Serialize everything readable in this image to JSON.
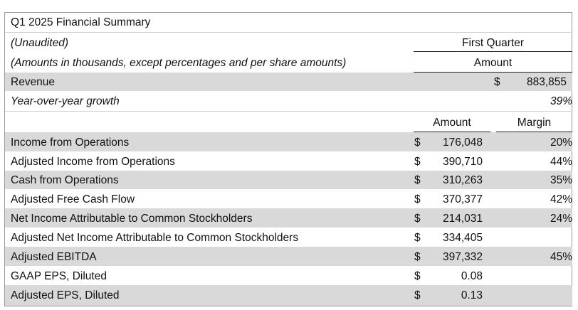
{
  "title": "Q1 2025 Financial Summary",
  "subtitle_unaudited": "(Unaudited)",
  "subtitle_units": "(Amounts in thousands, except percentages and per share amounts)",
  "header": {
    "period": "First Quarter",
    "amount": "Amount",
    "col_amount": "Amount",
    "col_margin": "Margin"
  },
  "revenue": {
    "label": "Revenue",
    "currency": "$",
    "value": "883,855"
  },
  "growth": {
    "label": "Year-over-year growth",
    "value": "39%"
  },
  "rows": [
    {
      "label": "Income from Operations",
      "currency": "$",
      "amount": "176,048",
      "margin": "20%"
    },
    {
      "label": "Adjusted Income from Operations",
      "currency": "$",
      "amount": "390,710",
      "margin": "44%"
    },
    {
      "label": "Cash from Operations",
      "currency": "$",
      "amount": "310,263",
      "margin": "35%"
    },
    {
      "label": "Adjusted Free Cash Flow",
      "currency": "$",
      "amount": "370,377",
      "margin": "42%"
    },
    {
      "label": "Net Income Attributable to Common Stockholders",
      "currency": "$",
      "amount": "214,031",
      "margin": "24%"
    },
    {
      "label": "Adjusted Net Income Attributable to Common Stockholders",
      "currency": "$",
      "amount": "334,405",
      "margin": ""
    },
    {
      "label": "Adjusted EBITDA",
      "currency": "$",
      "amount": "397,332",
      "margin": "45%"
    },
    {
      "label": "GAAP EPS, Diluted",
      "currency": "$",
      "amount": "0.08",
      "margin": ""
    },
    {
      "label": "Adjusted EPS, Diluted",
      "currency": "$",
      "amount": "0.13",
      "margin": ""
    }
  ]
}
